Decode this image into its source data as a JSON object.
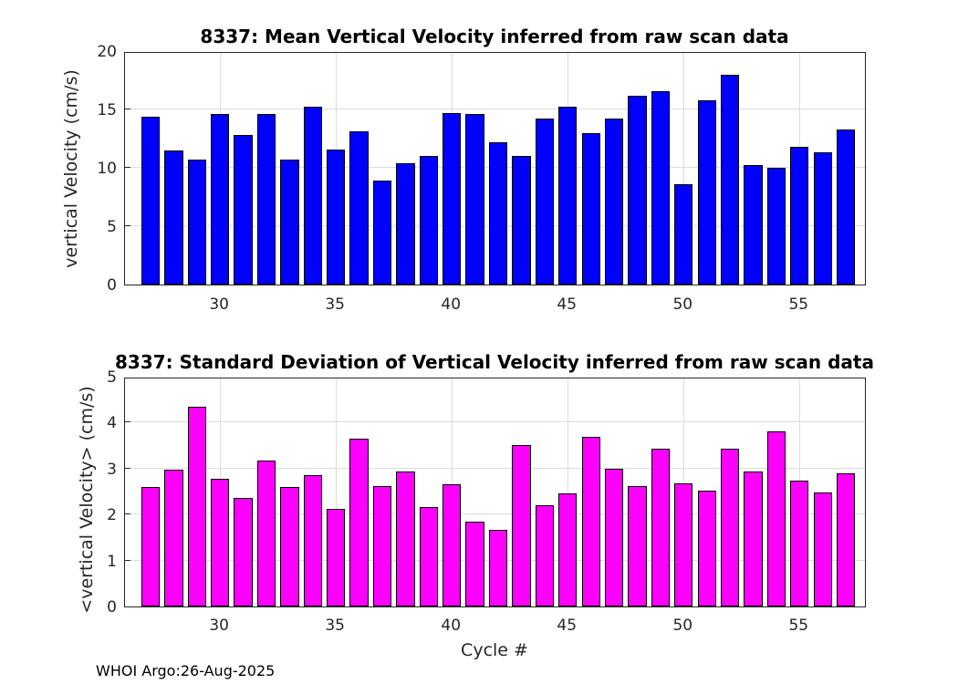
{
  "footer": "WHOI Argo:26-Aug-2025",
  "colors": {
    "mean_bar": "#0000FF",
    "std_bar": "#FF00FF",
    "grid": "#DCDCDC",
    "axis": "#262626",
    "title_text": "#000000"
  },
  "chart_data": [
    {
      "type": "bar",
      "title": "8337: Mean Vertical Velocity inferred from raw scan data",
      "ylabel": "vertical Velocity (cm/s)",
      "xlabel": "",
      "bar_color": "#0000FF",
      "grid": true,
      "x": [
        27,
        28,
        29,
        30,
        31,
        32,
        33,
        34,
        35,
        36,
        37,
        38,
        39,
        40,
        41,
        42,
        43,
        44,
        45,
        46,
        47,
        48,
        49,
        50,
        51,
        52,
        53,
        54,
        55,
        56,
        57
      ],
      "values": [
        14.4,
        11.5,
        10.7,
        14.6,
        12.8,
        14.6,
        10.7,
        15.2,
        11.6,
        13.1,
        8.9,
        10.4,
        11.0,
        14.7,
        14.6,
        12.2,
        11.0,
        14.2,
        15.2,
        13.0,
        14.2,
        16.2,
        16.6,
        8.6,
        15.8,
        18.0,
        10.2,
        10.0,
        11.8,
        11.3,
        13.3
      ],
      "xlim": [
        25.9,
        57.9
      ],
      "ylim": [
        0,
        20
      ],
      "yticks": [
        0,
        5,
        10,
        15,
        20
      ],
      "xticks": [
        30,
        35,
        40,
        45,
        50,
        55
      ],
      "bar_rel_width": 0.8
    },
    {
      "type": "bar",
      "title": "8337: Standard Deviation of Vertical Velocity inferred from raw scan data",
      "ylabel": "<vertical Velocity> (cm/s)",
      "xlabel": "Cycle #",
      "bar_color": "#FF00FF",
      "grid": true,
      "x": [
        27,
        28,
        29,
        30,
        31,
        32,
        33,
        34,
        35,
        36,
        37,
        38,
        39,
        40,
        41,
        42,
        43,
        44,
        45,
        46,
        47,
        48,
        49,
        50,
        51,
        52,
        53,
        54,
        55,
        56,
        57
      ],
      "values": [
        2.6,
        2.98,
        4.35,
        2.77,
        2.37,
        3.18,
        2.6,
        2.86,
        2.12,
        3.65,
        2.62,
        2.93,
        2.16,
        2.65,
        1.85,
        1.66,
        3.52,
        2.21,
        2.47,
        3.69,
        3.0,
        2.62,
        3.43,
        2.68,
        2.52,
        3.43,
        2.94,
        3.81,
        2.74,
        2.49,
        2.9
      ],
      "xlim": [
        25.9,
        57.9
      ],
      "ylim": [
        0,
        5
      ],
      "yticks": [
        0,
        1,
        2,
        3,
        4,
        5
      ],
      "xticks": [
        30,
        35,
        40,
        45,
        50,
        55
      ],
      "bar_rel_width": 0.8
    }
  ]
}
